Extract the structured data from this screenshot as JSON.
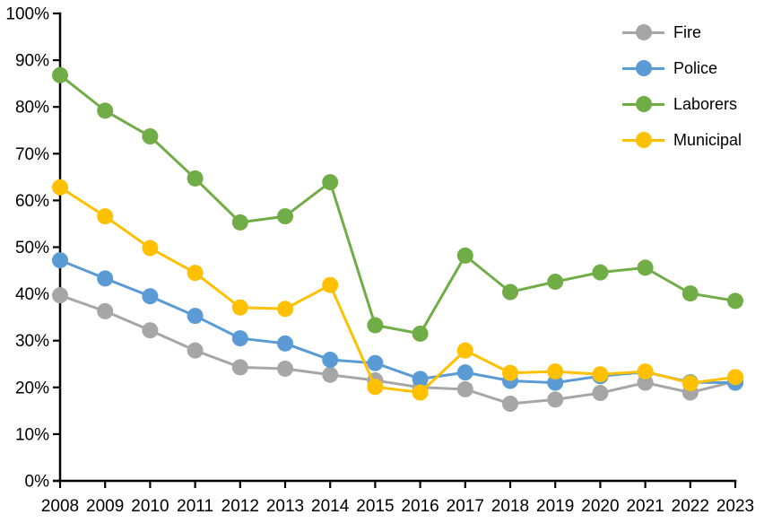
{
  "chart_data": {
    "type": "line",
    "title": "",
    "xlabel": "",
    "ylabel": "",
    "x": [
      2008,
      2009,
      2010,
      2011,
      2012,
      2013,
      2014,
      2015,
      2016,
      2017,
      2018,
      2019,
      2020,
      2021,
      2022,
      2023
    ],
    "series": [
      {
        "name": "Fire",
        "color": "#A6A6A6",
        "values": [
          39.7,
          36.3,
          32.2,
          27.9,
          24.3,
          24.0,
          22.7,
          21.5,
          20.0,
          19.6,
          16.5,
          17.4,
          18.8,
          21.0,
          18.9,
          21.3
        ]
      },
      {
        "name": "Police",
        "color": "#5B9BD5",
        "values": [
          47.2,
          43.3,
          39.5,
          35.3,
          30.5,
          29.4,
          25.9,
          25.2,
          21.8,
          23.2,
          21.4,
          21.0,
          22.4,
          23.3,
          21.1,
          21.0
        ]
      },
      {
        "name": "Laborers",
        "color": "#70AD47",
        "values": [
          86.8,
          79.2,
          73.7,
          64.7,
          55.3,
          56.6,
          63.9,
          33.3,
          31.5,
          48.2,
          40.4,
          42.6,
          44.6,
          45.6,
          40.1,
          38.5
        ]
      },
      {
        "name": "Municipal",
        "color": "#FFC000",
        "values": [
          62.8,
          56.6,
          49.8,
          44.5,
          37.1,
          36.8,
          41.9,
          20.1,
          18.9,
          27.9,
          23.1,
          23.4,
          22.8,
          23.4,
          20.9,
          22.2
        ]
      }
    ],
    "ylim": [
      0,
      100
    ],
    "y_ticks": [
      0,
      10,
      20,
      30,
      40,
      50,
      60,
      70,
      80,
      90,
      100
    ],
    "y_tick_labels": [
      "0%",
      "10%",
      "20%",
      "30%",
      "40%",
      "50%",
      "60%",
      "70%",
      "80%",
      "90%",
      "100%"
    ],
    "x_tick_labels": [
      "2008",
      "2009",
      "2010",
      "2011",
      "2012",
      "2013",
      "2014",
      "2015",
      "2016",
      "2017",
      "2018",
      "2019",
      "2020",
      "2021",
      "2022",
      "2023"
    ],
    "grid": false,
    "legend_position": "top-right",
    "axis_color": "#000000",
    "marker": "circle"
  }
}
